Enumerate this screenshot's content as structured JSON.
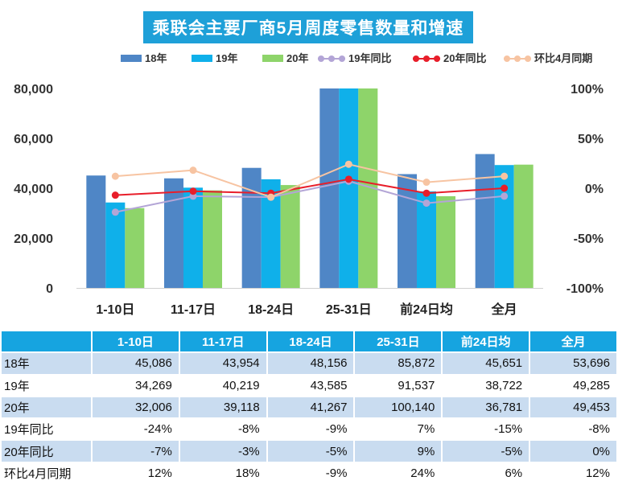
{
  "title": "乘联会主要厂商5月周度零售数量和增速",
  "chart_data": {
    "type": "bar",
    "categories": [
      "1-10日",
      "11-17日",
      "18-24日",
      "25-31日",
      "前24日均",
      "全月"
    ],
    "bar_series": [
      {
        "name": "18年",
        "color": "#4f86c6",
        "values": [
          45086,
          43954,
          48156,
          85872,
          45651,
          53696
        ]
      },
      {
        "name": "19年",
        "color": "#0fb0ea",
        "values": [
          34269,
          40219,
          43585,
          91537,
          38722,
          49285
        ]
      },
      {
        "name": "20年",
        "color": "#8ed46a",
        "values": [
          32006,
          39118,
          41267,
          100140,
          36781,
          49453
        ]
      }
    ],
    "line_series": [
      {
        "name": "19年同比",
        "color": "#b3a5d6",
        "values": [
          -24,
          -8,
          -9,
          7,
          -15,
          -8
        ]
      },
      {
        "name": "20年同比",
        "color": "#e81e2a",
        "values": [
          -7,
          -3,
          -5,
          9,
          -5,
          0
        ]
      },
      {
        "name": "环比4月同期",
        "color": "#f7c4a2",
        "values": [
          12,
          18,
          -9,
          24,
          6,
          12
        ]
      }
    ],
    "y_left": {
      "ticks": [
        0,
        20000,
        40000,
        60000,
        80000
      ],
      "tick_labels": [
        "0",
        "20,000",
        "40,000",
        "60,000",
        "80,000"
      ],
      "range": [
        0,
        80000
      ]
    },
    "y_right": {
      "ticks": [
        -100,
        -50,
        0,
        50,
        100
      ],
      "tick_labels": [
        "-100%",
        "-50%",
        "0%",
        "50%",
        "100%"
      ],
      "range": [
        -100,
        100
      ]
    },
    "legend_position": "top"
  },
  "table": {
    "headers": [
      "1-10日",
      "11-17日",
      "18-24日",
      "25-31日",
      "前24日均",
      "全月"
    ],
    "rows": [
      {
        "label": "18年",
        "cells": [
          "45,086",
          "43,954",
          "48,156",
          "85,872",
          "45,651",
          "53,696"
        ]
      },
      {
        "label": "19年",
        "cells": [
          "34,269",
          "40,219",
          "43,585",
          "91,537",
          "38,722",
          "49,285"
        ]
      },
      {
        "label": "20年",
        "cells": [
          "32,006",
          "39,118",
          "41,267",
          "100,140",
          "36,781",
          "49,453"
        ]
      },
      {
        "label": "19年同比",
        "cells": [
          "-24%",
          "-8%",
          "-9%",
          "7%",
          "-15%",
          "-8%"
        ]
      },
      {
        "label": "20年同比",
        "cells": [
          "-7%",
          "-3%",
          "-5%",
          "9%",
          "-5%",
          "0%"
        ]
      },
      {
        "label": "环比4月同期",
        "cells": [
          "12%",
          "18%",
          "-9%",
          "24%",
          "6%",
          "12%"
        ]
      }
    ]
  }
}
